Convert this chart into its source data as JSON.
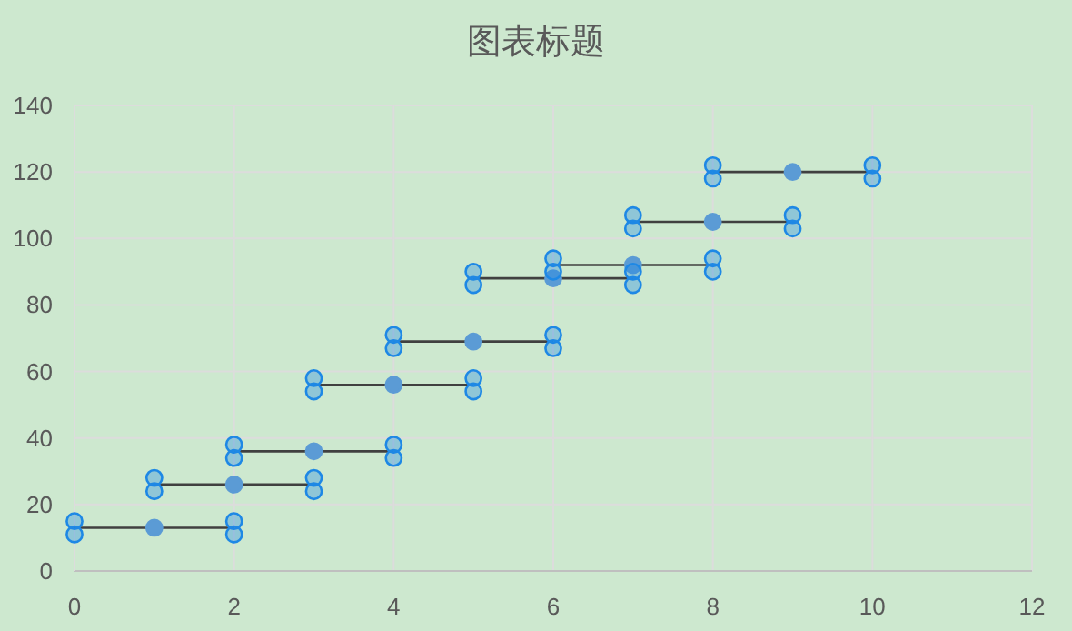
{
  "chart_data": {
    "type": "scatter",
    "title": "图表标题",
    "xlim": [
      0,
      12
    ],
    "xticks": [
      0,
      2,
      4,
      6,
      8,
      10,
      12
    ],
    "ylim": [
      0,
      140
    ],
    "yticks": [
      0,
      20,
      40,
      60,
      80,
      100,
      120,
      140
    ],
    "grid": true,
    "marker": "circle",
    "series": [
      {
        "type": "line",
        "marker": "none",
        "color": "#404040",
        "x": [
          0,
          2
        ],
        "values": [
          13,
          13
        ]
      },
      {
        "type": "line",
        "marker": "none",
        "color": "#404040",
        "x": [
          1,
          3
        ],
        "values": [
          26,
          26
        ]
      },
      {
        "type": "line",
        "marker": "none",
        "color": "#404040",
        "x": [
          2,
          4
        ],
        "values": [
          36,
          36
        ]
      },
      {
        "type": "line",
        "marker": "none",
        "color": "#404040",
        "x": [
          3,
          5
        ],
        "values": [
          56,
          56
        ]
      },
      {
        "type": "line",
        "marker": "none",
        "color": "#404040",
        "x": [
          4,
          6
        ],
        "values": [
          69,
          69
        ]
      },
      {
        "type": "line",
        "marker": "none",
        "color": "#404040",
        "x": [
          5,
          7
        ],
        "values": [
          88,
          88
        ]
      },
      {
        "type": "line",
        "marker": "none",
        "color": "#404040",
        "x": [
          6,
          8
        ],
        "values": [
          92,
          92
        ]
      },
      {
        "type": "line",
        "marker": "none",
        "color": "#404040",
        "x": [
          7,
          9
        ],
        "values": [
          105,
          105
        ]
      },
      {
        "type": "line",
        "marker": "none",
        "color": "#404040",
        "x": [
          8,
          10
        ],
        "values": [
          120,
          120
        ]
      },
      {
        "color": "#5b9bd5",
        "x": [
          1,
          2,
          3,
          4,
          5,
          6,
          7,
          8,
          9
        ],
        "values": [
          13,
          26,
          36,
          56,
          69,
          88,
          92,
          105,
          120
        ]
      },
      {
        "color": "#1e88e5",
        "x": [
          0,
          0,
          2,
          2,
          1,
          1,
          3,
          3,
          2,
          2,
          4,
          4,
          3,
          3,
          5,
          5,
          4,
          4,
          6,
          6,
          5,
          5,
          7,
          7,
          6,
          6,
          8,
          8,
          7,
          7,
          9,
          9,
          8,
          8,
          10,
          10
        ],
        "values": [
          15,
          11,
          15,
          11,
          28,
          24,
          28,
          24,
          38,
          34,
          38,
          34,
          58,
          54,
          58,
          54,
          71,
          67,
          71,
          67,
          90,
          86,
          90,
          86,
          94,
          90,
          94,
          90,
          107,
          103,
          107,
          103,
          122,
          118,
          122,
          118
        ]
      }
    ]
  }
}
